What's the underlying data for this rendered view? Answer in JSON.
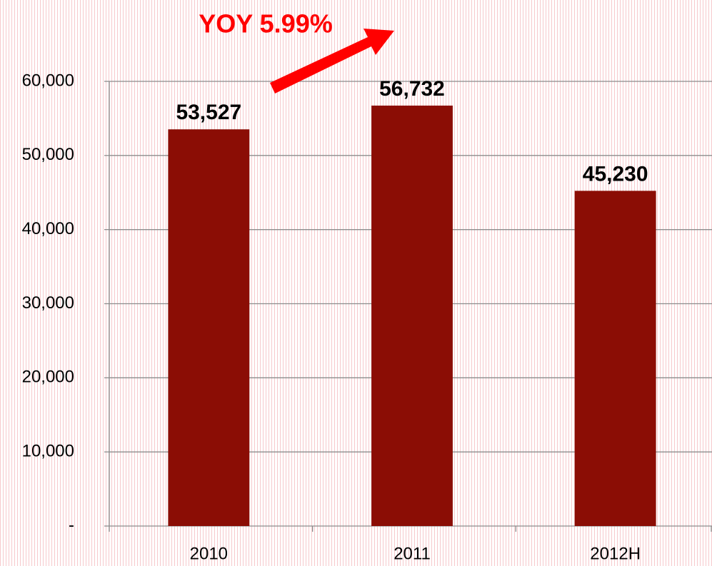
{
  "chart_data": {
    "type": "bar",
    "annotation": "YOY 5.99%",
    "categories": [
      "2010",
      "2011",
      "2012H"
    ],
    "values": [
      53527,
      56732,
      45230
    ],
    "value_labels": [
      "53,527",
      "56,732",
      "45,230"
    ],
    "color": "#8b0d05",
    "ylim": [
      0,
      60000
    ],
    "yticks": [
      {
        "value": 0,
        "label": "-"
      },
      {
        "value": 10000,
        "label": "10,000"
      },
      {
        "value": 20000,
        "label": "20,000"
      },
      {
        "value": 30000,
        "label": "30,000"
      },
      {
        "value": 40000,
        "label": "40,000"
      },
      {
        "value": 50000,
        "label": "50,000"
      },
      {
        "value": 60000,
        "label": "60,000"
      }
    ],
    "grid": true
  }
}
